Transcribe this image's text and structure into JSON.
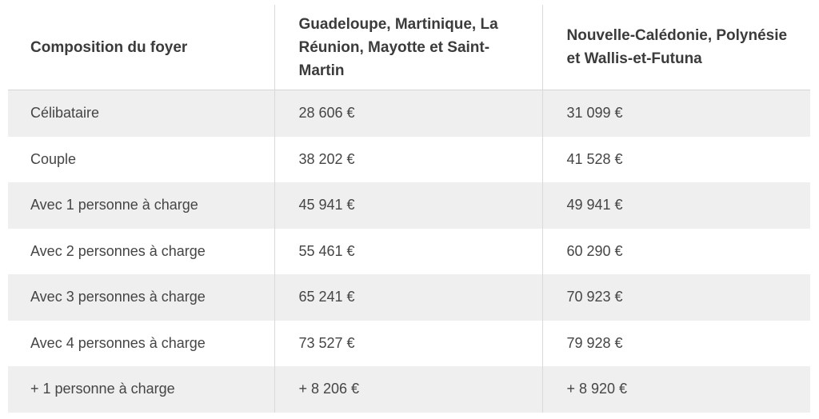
{
  "table": {
    "headers": [
      "Composition du foyer",
      "Guadeloupe, Martinique, La Réunion, Mayotte et Saint-Martin",
      "Nouvelle-Calédonie, Polynésie et Wallis-et-Futuna"
    ],
    "rows": [
      [
        "Célibataire",
        "28 606 €",
        "31 099 €"
      ],
      [
        "Couple",
        "38 202 €",
        "41 528 €"
      ],
      [
        "Avec 1 personne à charge",
        "45 941 €",
        "49 941 €"
      ],
      [
        "Avec 2 personnes à charge",
        "55 461 €",
        "60 290 €"
      ],
      [
        "Avec 3 personnes à charge",
        "65 241 €",
        "70 923 €"
      ],
      [
        "Avec 4 personnes à charge",
        "73 527 €",
        "79 928 €"
      ],
      [
        "+ 1 personne à charge",
        "+ 8 206 €",
        "+ 8 920 €"
      ]
    ]
  },
  "colors": {
    "header_text": "#3b3b3b",
    "body_text": "#454545",
    "stripe": "#efefef",
    "border": "#d9d9d9"
  }
}
